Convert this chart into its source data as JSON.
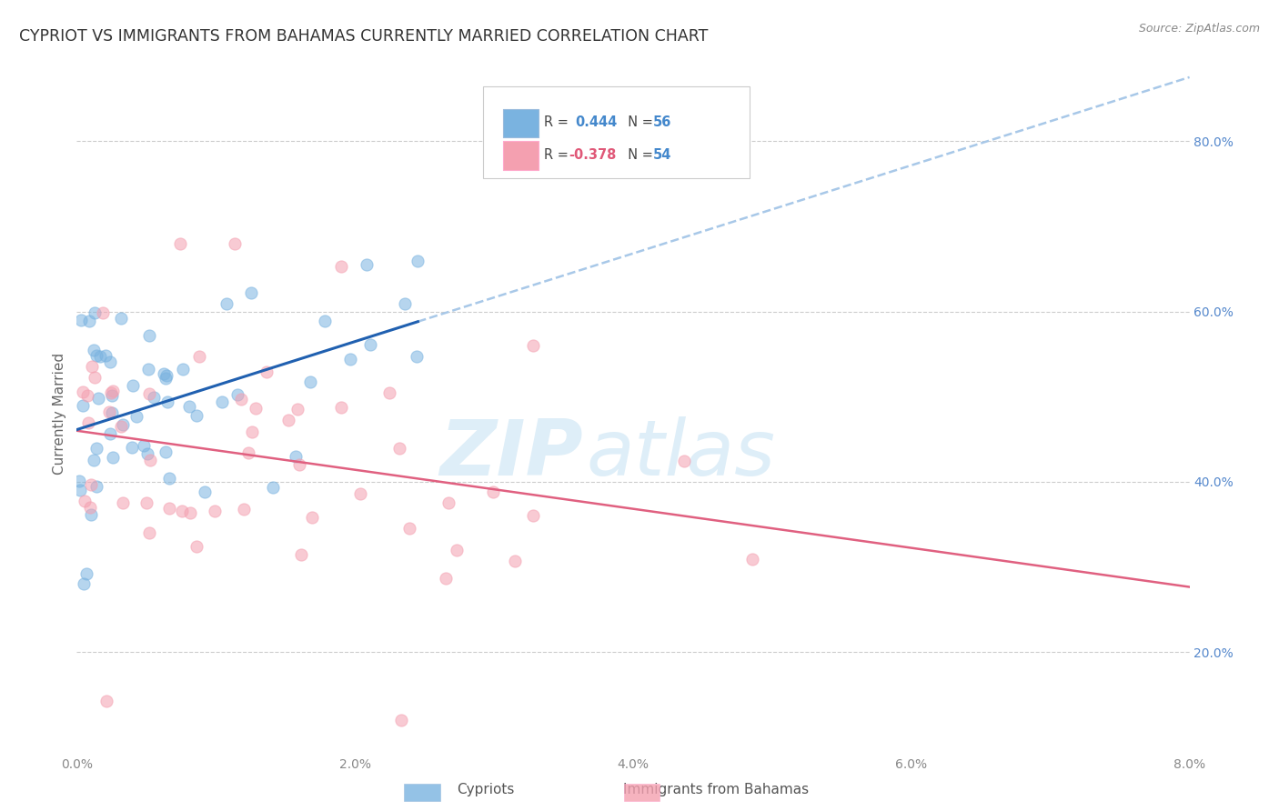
{
  "title": "CYPRIOT VS IMMIGRANTS FROM BAHAMAS CURRENTLY MARRIED CORRELATION CHART",
  "source": "Source: ZipAtlas.com",
  "ylabel": "Currently Married",
  "right_yticks": [
    "20.0%",
    "40.0%",
    "60.0%",
    "80.0%"
  ],
  "right_ytick_vals": [
    0.2,
    0.4,
    0.6,
    0.8
  ],
  "xlim": [
    0.0,
    0.08
  ],
  "ylim": [
    0.08,
    0.88
  ],
  "cypriot_color": "#7ab3e0",
  "bahamas_color": "#f4a0b0",
  "trend_blue_color": "#2060b0",
  "trend_pink_color": "#e06080",
  "trend_blue_dashed_color": "#a8c8e8",
  "background_color": "#ffffff",
  "watermark_zip": "ZIP",
  "watermark_atlas": "atlas",
  "watermark_color": "#deeef8",
  "dot_size": 90,
  "dot_alpha": 0.55,
  "cypriot_seed": 42,
  "bahamas_seed": 17,
  "grid_color": "#cccccc",
  "grid_style": "--",
  "legend_R_color": "#e05878",
  "legend_N_color": "#4488cc",
  "legend_R_blue_color": "#4488cc",
  "legend_text_color": "#555555",
  "title_color": "#333333",
  "source_color": "#888888",
  "ytick_color": "#5588cc",
  "xtick_color": "#888888"
}
